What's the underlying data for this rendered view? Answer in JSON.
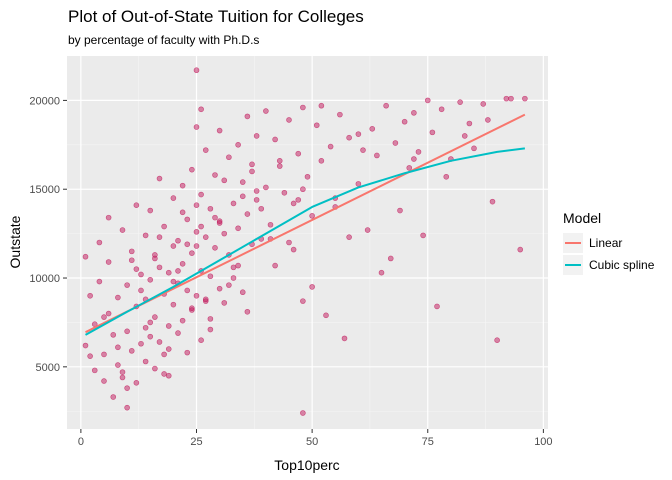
{
  "chart_data": {
    "type": "scatter",
    "title": "Plot of Out-of-State Tuition for Colleges",
    "subtitle": "by percentage of faculty with Ph.D.s",
    "xlabel": "Top10perc",
    "ylabel": "Outstate",
    "xlim": [
      -3,
      101
    ],
    "ylim": [
      1500,
      22500
    ],
    "x_ticks": [
      0,
      25,
      50,
      75,
      100
    ],
    "y_ticks": [
      5000,
      10000,
      15000,
      20000
    ],
    "grid": true,
    "legend": {
      "title": "Model",
      "position": "right",
      "entries": [
        {
          "label": "Linear",
          "color": "#f8766d"
        },
        {
          "label": "Cubic spline",
          "color": "#00bfc4"
        }
      ]
    },
    "point_color": "#c2185b",
    "series": [
      {
        "name": "Linear",
        "color": "#f8766d",
        "x": [
          1,
          96
        ],
        "y": [
          6950,
          19200
        ]
      },
      {
        "name": "Cubic spline",
        "color": "#00bfc4",
        "x": [
          1,
          10,
          20,
          30,
          40,
          50,
          60,
          70,
          80,
          90,
          96
        ],
        "y": [
          6800,
          8100,
          9500,
          11000,
          12500,
          14000,
          15100,
          15900,
          16600,
          17100,
          17300
        ]
      }
    ],
    "points": {
      "x": [
        1,
        2,
        3,
        4,
        5,
        5,
        6,
        7,
        7,
        8,
        8,
        9,
        9,
        10,
        10,
        10,
        11,
        11,
        12,
        12,
        12,
        13,
        13,
        14,
        14,
        14,
        15,
        15,
        15,
        16,
        16,
        16,
        17,
        17,
        17,
        18,
        18,
        18,
        19,
        19,
        19,
        20,
        20,
        20,
        21,
        21,
        21,
        22,
        22,
        22,
        23,
        23,
        23,
        24,
        24,
        24,
        25,
        25,
        25,
        26,
        26,
        26,
        27,
        27,
        27,
        28,
        28,
        28,
        29,
        29,
        30,
        30,
        30,
        31,
        31,
        32,
        32,
        33,
        33,
        34,
        34,
        35,
        35,
        36,
        36,
        37,
        37,
        38,
        38,
        39,
        40,
        40,
        41,
        42,
        42,
        43,
        44,
        45,
        45,
        46,
        47,
        48,
        48,
        49,
        50,
        50,
        51,
        52,
        53,
        54,
        55,
        56,
        57,
        58,
        60,
        60,
        62,
        63,
        64,
        65,
        66,
        68,
        69,
        70,
        71,
        72,
        73,
        74,
        75,
        76,
        77,
        78,
        80,
        82,
        84,
        85,
        87,
        89,
        90,
        92,
        95,
        96,
        1,
        3,
        5,
        6,
        8,
        10,
        12,
        14,
        16,
        18,
        20,
        22,
        24,
        26,
        28,
        30,
        32,
        34,
        36,
        38,
        2,
        4,
        6,
        9,
        11,
        13,
        15,
        17,
        19,
        21,
        23,
        25,
        27,
        29,
        31,
        33,
        35,
        37,
        39,
        41,
        43,
        46,
        48,
        52,
        55,
        58,
        61,
        67,
        72,
        79,
        83,
        88,
        93,
        25,
        25,
        26,
        47,
        48
      ],
      "y": [
        11200,
        5600,
        4800,
        9800,
        4200,
        7800,
        13400,
        6800,
        3300,
        8900,
        5100,
        12700,
        4400,
        9600,
        2700,
        7000,
        11500,
        5900,
        14100,
        8400,
        4100,
        10200,
        6300,
        12400,
        8800,
        5300,
        13800,
        9900,
        6700,
        11100,
        7800,
        4900,
        15600,
        10600,
        6400,
        12900,
        9100,
        5700,
        10300,
        7300,
        4500,
        14500,
        11800,
        8500,
        9700,
        6900,
        12100,
        15200,
        10800,
        7600,
        13300,
        9300,
        5800,
        16100,
        11400,
        8200,
        18500,
        12600,
        9000,
        14700,
        10400,
        6500,
        17200,
        12300,
        8700,
        13900,
        10100,
        7100,
        15800,
        11700,
        18300,
        13100,
        9400,
        12500,
        8600,
        16800,
        11300,
        14200,
        10000,
        17500,
        12800,
        15400,
        9200,
        19100,
        13600,
        16400,
        11900,
        18000,
        14400,
        12200,
        19400,
        15100,
        13000,
        17800,
        10700,
        16300,
        14800,
        18900,
        12000,
        11600,
        17000,
        19600,
        2400,
        15700,
        13500,
        9500,
        18600,
        16600,
        7900,
        17400,
        14000,
        19200,
        6600,
        17900,
        15300,
        18100,
        12700,
        18400,
        16900,
        10300,
        19700,
        17600,
        13800,
        18800,
        16200,
        19300,
        17100,
        12400,
        20000,
        18200,
        8400,
        19500,
        16700,
        19900,
        18700,
        17300,
        19800,
        14300,
        6500,
        20100,
        11600,
        20100,
        6200,
        7400,
        5700,
        10900,
        6100,
        3800,
        10500,
        7200,
        11300,
        4600,
        9800,
        13700,
        8300,
        12900,
        7700,
        13200,
        9600,
        10700,
        8100,
        14900,
        9000,
        12000,
        8000,
        4700,
        11000,
        9300,
        7500,
        12300,
        6000,
        10400,
        11900,
        14100,
        8800,
        13400,
        15500,
        10600,
        14600,
        16000,
        13900,
        12200,
        16600,
        14200,
        15000,
        19700,
        14500,
        12300,
        17200,
        11100,
        16700,
        15700,
        18000,
        18900,
        20100,
        21700,
        11800,
        19500,
        14400,
        8700
      ]
    }
  }
}
